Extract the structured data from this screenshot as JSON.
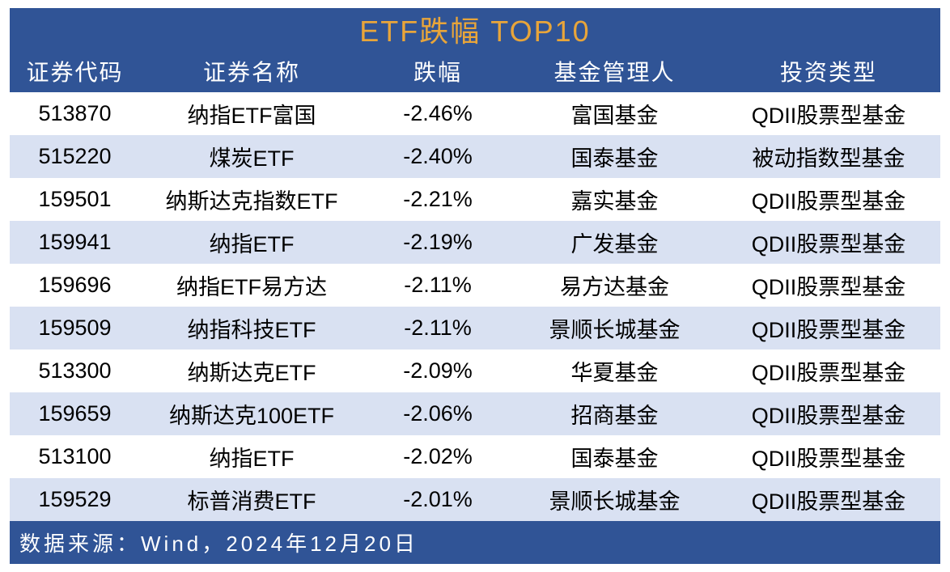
{
  "table": {
    "title": "ETF跌幅 TOP10",
    "columns": [
      "证券代码",
      "证券名称",
      "跌幅",
      "基金管理人",
      "投资类型"
    ],
    "rows": [
      [
        "513870",
        "纳指ETF富国",
        "-2.46%",
        "富国基金",
        "QDII股票型基金"
      ],
      [
        "515220",
        "煤炭ETF",
        "-2.40%",
        "国泰基金",
        "被动指数型基金"
      ],
      [
        "159501",
        "纳斯达克指数ETF",
        "-2.21%",
        "嘉实基金",
        "QDII股票型基金"
      ],
      [
        "159941",
        "纳指ETF",
        "-2.19%",
        "广发基金",
        "QDII股票型基金"
      ],
      [
        "159696",
        "纳指ETF易方达",
        "-2.11%",
        "易方达基金",
        "QDII股票型基金"
      ],
      [
        "159509",
        "纳指科技ETF",
        "-2.11%",
        "景顺长城基金",
        "QDII股票型基金"
      ],
      [
        "513300",
        "纳斯达克ETF",
        "-2.09%",
        "华夏基金",
        "QDII股票型基金"
      ],
      [
        "159659",
        "纳斯达克100ETF",
        "-2.06%",
        "招商基金",
        "QDII股票型基金"
      ],
      [
        "513100",
        "纳指ETF",
        "-2.02%",
        "国泰基金",
        "QDII股票型基金"
      ],
      [
        "159529",
        "标普消费ETF",
        "-2.01%",
        "景顺长城基金",
        "QDII股票型基金"
      ]
    ],
    "footer": "数据来源：Wind，2024年12月20日",
    "colors": {
      "header_bg": "#305496",
      "title_color": "#e8a53a",
      "header_text": "#ffffff",
      "row_white": "#ffffff",
      "row_gray": "#d9e1f2",
      "footer_bg": "#305496",
      "footer_text": "#ffffff",
      "data_text": "#000000"
    },
    "column_widths": [
      "14%",
      "24%",
      "16%",
      "22%",
      "24%"
    ],
    "title_fontsize": 36,
    "header_fontsize": 28,
    "data_fontsize": 27,
    "footer_fontsize": 26
  }
}
